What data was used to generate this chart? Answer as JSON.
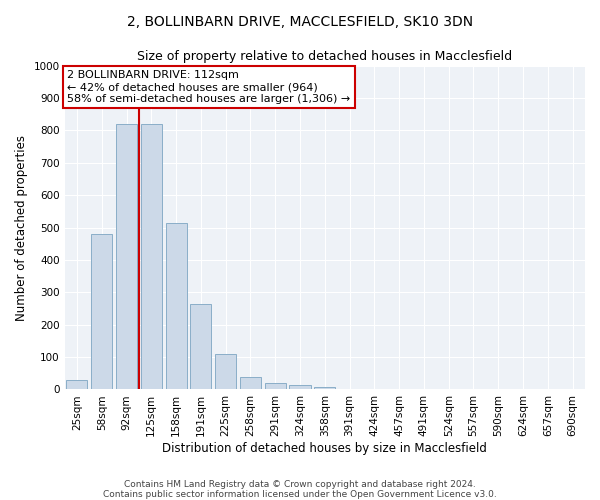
{
  "title": "2, BOLLINBARN DRIVE, MACCLESFIELD, SK10 3DN",
  "subtitle": "Size of property relative to detached houses in Macclesfield",
  "xlabel": "Distribution of detached houses by size in Macclesfield",
  "ylabel": "Number of detached properties",
  "categories": [
    "25sqm",
    "58sqm",
    "92sqm",
    "125sqm",
    "158sqm",
    "191sqm",
    "225sqm",
    "258sqm",
    "291sqm",
    "324sqm",
    "358sqm",
    "391sqm",
    "424sqm",
    "457sqm",
    "491sqm",
    "524sqm",
    "557sqm",
    "590sqm",
    "624sqm",
    "657sqm",
    "690sqm"
  ],
  "values": [
    28,
    480,
    820,
    820,
    515,
    265,
    110,
    37,
    20,
    13,
    8,
    0,
    0,
    0,
    0,
    0,
    0,
    0,
    0,
    0,
    0
  ],
  "bar_color": "#ccd9e8",
  "bar_edge_color": "#8aaec8",
  "vline_x_index": 2.5,
  "vline_color": "#cc0000",
  "annotation_text": "2 BOLLINBARN DRIVE: 112sqm\n← 42% of detached houses are smaller (964)\n58% of semi-detached houses are larger (1,306) →",
  "annotation_box_color": "#ffffff",
  "annotation_box_edge_color": "#cc0000",
  "ylim": [
    0,
    1000
  ],
  "yticks": [
    0,
    100,
    200,
    300,
    400,
    500,
    600,
    700,
    800,
    900,
    1000
  ],
  "background_color": "#eef2f7",
  "footer_line1": "Contains HM Land Registry data © Crown copyright and database right 2024.",
  "footer_line2": "Contains public sector information licensed under the Open Government Licence v3.0.",
  "title_fontsize": 10,
  "subtitle_fontsize": 9,
  "axis_label_fontsize": 8.5,
  "tick_fontsize": 7.5,
  "annotation_fontsize": 8,
  "footer_fontsize": 6.5
}
